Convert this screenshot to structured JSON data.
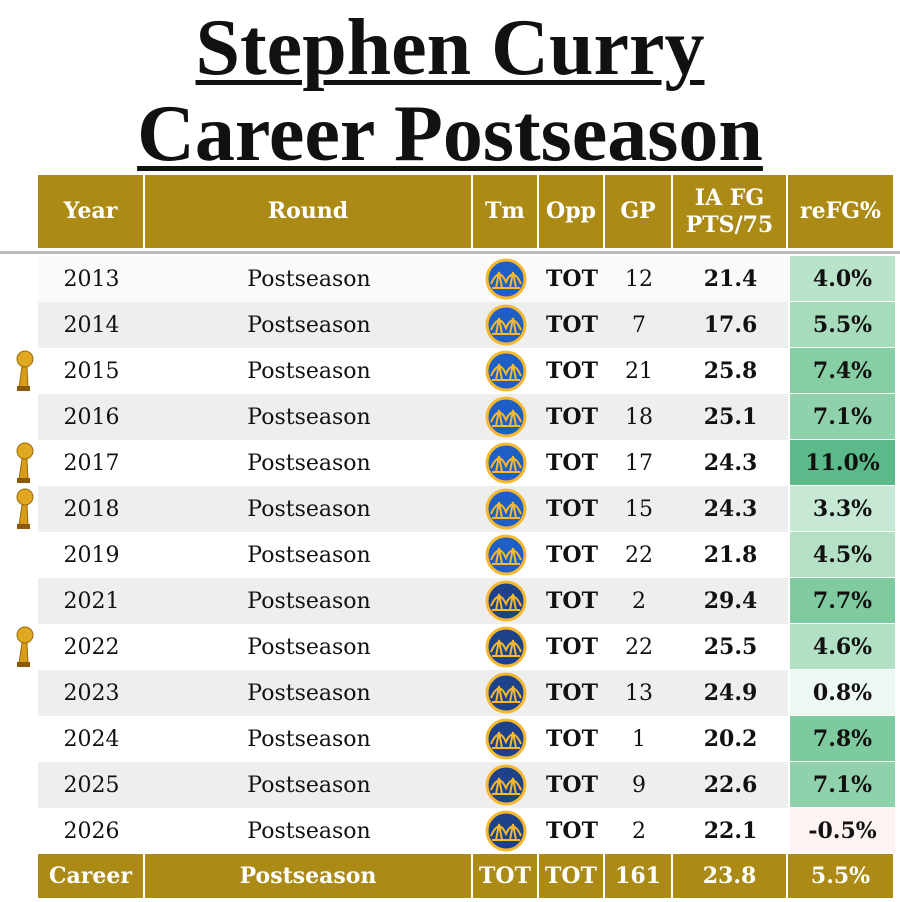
{
  "header": {
    "title_lines": [
      "Stephen Curry",
      "Career Postseason"
    ]
  },
  "table": {
    "columns": [
      "Year",
      "Round",
      "Tm",
      "Opp",
      "GP",
      "IA FG PTS/75",
      "reFG%"
    ],
    "rows": [
      {
        "cells": [
          "2013",
          "Postseason",
          "TOT",
          "12",
          "21.4",
          "4.0%"
        ],
        "champion": false,
        "logo_color": "#1d5fc4",
        "refg_color": "#b9e3ca"
      },
      {
        "cells": [
          "2014",
          "Postseason",
          "TOT",
          "7",
          "17.6",
          "5.5%"
        ],
        "champion": false,
        "logo_color": "#1d5fc4",
        "refg_color": "#a6dbbc"
      },
      {
        "cells": [
          "2015",
          "Postseason",
          "TOT",
          "21",
          "25.8",
          "7.4%"
        ],
        "champion": true,
        "logo_color": "#1d5fc4",
        "refg_color": "#86cea3"
      },
      {
        "cells": [
          "2016",
          "Postseason",
          "TOT",
          "18",
          "25.1",
          "7.1%"
        ],
        "champion": false,
        "logo_color": "#1d5fc4",
        "refg_color": "#8fd1aa"
      },
      {
        "cells": [
          "2017",
          "Postseason",
          "TOT",
          "17",
          "24.3",
          "11.0%"
        ],
        "champion": true,
        "logo_color": "#1d5fc4",
        "refg_color": "#5cb98a"
      },
      {
        "cells": [
          "2018",
          "Postseason",
          "TOT",
          "15",
          "24.3",
          "3.3%"
        ],
        "champion": true,
        "logo_color": "#1d5fc4",
        "refg_color": "#c7e8d4"
      },
      {
        "cells": [
          "2019",
          "Postseason",
          "TOT",
          "22",
          "21.8",
          "4.5%"
        ],
        "champion": false,
        "logo_color": "#1d5fc4",
        "refg_color": "#b4e1c6"
      },
      {
        "cells": [
          "2021",
          "Postseason",
          "TOT",
          "2",
          "29.4",
          "7.7%"
        ],
        "champion": false,
        "logo_color": "#1d428a",
        "refg_color": "#7fcb9f"
      },
      {
        "cells": [
          "2022",
          "Postseason",
          "TOT",
          "22",
          "25.5",
          "4.6%"
        ],
        "champion": true,
        "logo_color": "#1d428a",
        "refg_color": "#b2e0c4"
      },
      {
        "cells": [
          "2023",
          "Postseason",
          "TOT",
          "13",
          "24.9",
          "0.8%"
        ],
        "champion": false,
        "logo_color": "#1d428a",
        "refg_color": "#eef8f2"
      },
      {
        "cells": [
          "2024",
          "Postseason",
          "TOT",
          "1",
          "20.2",
          "7.8%"
        ],
        "champion": false,
        "logo_color": "#1d428a",
        "refg_color": "#7cca9d"
      },
      {
        "cells": [
          "2025",
          "Postseason",
          "TOT",
          "9",
          "22.6",
          "7.1%"
        ],
        "champion": false,
        "logo_color": "#1d428a",
        "refg_color": "#8fd1aa"
      },
      {
        "cells": [
          "2026",
          "Postseason",
          "TOT",
          "2",
          "22.1",
          "-0.5%"
        ],
        "champion": false,
        "logo_color": "#1d428a",
        "refg_color": "#fdf3f3"
      }
    ],
    "career": [
      "Career",
      "Postseason",
      "TOT",
      "TOT",
      "161",
      "23.8",
      "5.5%"
    ]
  }
}
